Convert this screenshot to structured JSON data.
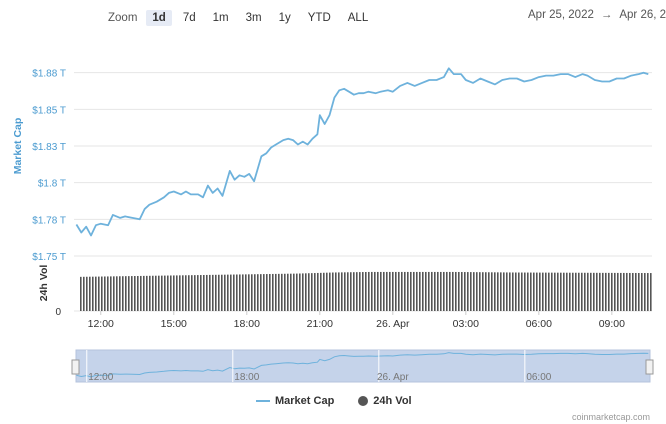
{
  "zoom": {
    "label": "Zoom",
    "buttons": [
      "1d",
      "7d",
      "1m",
      "3m",
      "1y",
      "YTD",
      "ALL"
    ],
    "active": "1d"
  },
  "range": {
    "from": "Apr 25, 2022",
    "arrow": "→",
    "to": "Apr 26, 2"
  },
  "legend": {
    "market_cap": "Market Cap",
    "volume": "24h Vol"
  },
  "credit": "coinmarketcap.com",
  "colors": {
    "line": "#6eb2dc",
    "bar": "#555555",
    "navigator_fill": "#c5d3ea",
    "grid": "#e6e6e6"
  },
  "chart_data": {
    "type": "line",
    "ylabel": "Market Cap",
    "ylabel2": "24h Vol",
    "yticks": [
      "$1.75 T",
      "$1.78 T",
      "$1.8 T",
      "$1.83 T",
      "$1.85 T",
      "$1.88 T"
    ],
    "ytick_values": [
      1.75,
      1.775,
      1.8,
      1.825,
      1.85,
      1.875
    ],
    "ylim": [
      1.75,
      1.9
    ],
    "y2ticks": [
      "0"
    ],
    "xlim": [
      10.9,
      34.65
    ],
    "xticks": [
      {
        "label": "12:00",
        "t": 12
      },
      {
        "label": "15:00",
        "t": 15
      },
      {
        "label": "18:00",
        "t": 18
      },
      {
        "label": "21:00",
        "t": 21
      },
      {
        "label": "26. Apr",
        "t": 24
      },
      {
        "label": "03:00",
        "t": 27
      },
      {
        "label": "06:00",
        "t": 30
      },
      {
        "label": "09:00",
        "t": 33
      }
    ],
    "navigator_xticks": [
      "12:00",
      "18:00",
      "26. Apr",
      "06:00"
    ],
    "series": [
      {
        "name": "Market Cap",
        "points": [
          [
            11.0,
            1.7715
          ],
          [
            11.2,
            1.766
          ],
          [
            11.4,
            1.77
          ],
          [
            11.6,
            1.764
          ],
          [
            11.8,
            1.771
          ],
          [
            12.0,
            1.772
          ],
          [
            12.3,
            1.771
          ],
          [
            12.5,
            1.778
          ],
          [
            12.8,
            1.776
          ],
          [
            13.0,
            1.777
          ],
          [
            13.3,
            1.776
          ],
          [
            13.6,
            1.775
          ],
          [
            13.8,
            1.782
          ],
          [
            14.0,
            1.785
          ],
          [
            14.3,
            1.787
          ],
          [
            14.6,
            1.79
          ],
          [
            14.8,
            1.793
          ],
          [
            15.0,
            1.794
          ],
          [
            15.3,
            1.792
          ],
          [
            15.5,
            1.794
          ],
          [
            15.7,
            1.792
          ],
          [
            16.0,
            1.792
          ],
          [
            16.2,
            1.79
          ],
          [
            16.4,
            1.798
          ],
          [
            16.6,
            1.793
          ],
          [
            16.8,
            1.796
          ],
          [
            17.0,
            1.791
          ],
          [
            17.3,
            1.808
          ],
          [
            17.5,
            1.802
          ],
          [
            17.7,
            1.805
          ],
          [
            17.9,
            1.804
          ],
          [
            18.1,
            1.806
          ],
          [
            18.3,
            1.801
          ],
          [
            18.6,
            1.818
          ],
          [
            18.8,
            1.82
          ],
          [
            19.0,
            1.824
          ],
          [
            19.2,
            1.826
          ],
          [
            19.5,
            1.829
          ],
          [
            19.7,
            1.83
          ],
          [
            19.9,
            1.829
          ],
          [
            20.1,
            1.826
          ],
          [
            20.3,
            1.828
          ],
          [
            20.5,
            1.826
          ],
          [
            20.7,
            1.83
          ],
          [
            20.9,
            1.833
          ],
          [
            21.0,
            1.846
          ],
          [
            21.2,
            1.84
          ],
          [
            21.4,
            1.846
          ],
          [
            21.6,
            1.858
          ],
          [
            21.8,
            1.863
          ],
          [
            22.0,
            1.864
          ],
          [
            22.2,
            1.862
          ],
          [
            22.4,
            1.86
          ],
          [
            22.6,
            1.861
          ],
          [
            22.8,
            1.861
          ],
          [
            23.0,
            1.862
          ],
          [
            23.3,
            1.861
          ],
          [
            23.5,
            1.862
          ],
          [
            23.8,
            1.863
          ],
          [
            24.0,
            1.862
          ],
          [
            24.3,
            1.866
          ],
          [
            24.6,
            1.868
          ],
          [
            24.9,
            1.866
          ],
          [
            25.2,
            1.868
          ],
          [
            25.5,
            1.87
          ],
          [
            25.8,
            1.87
          ],
          [
            26.1,
            1.872
          ],
          [
            26.3,
            1.878
          ],
          [
            26.5,
            1.874
          ],
          [
            26.8,
            1.874
          ],
          [
            27.0,
            1.87
          ],
          [
            27.3,
            1.868
          ],
          [
            27.6,
            1.871
          ],
          [
            27.9,
            1.869
          ],
          [
            28.2,
            1.867
          ],
          [
            28.5,
            1.87
          ],
          [
            28.8,
            1.871
          ],
          [
            29.1,
            1.871
          ],
          [
            29.4,
            1.869
          ],
          [
            29.7,
            1.87
          ],
          [
            30.0,
            1.872
          ],
          [
            30.3,
            1.873
          ],
          [
            30.6,
            1.873
          ],
          [
            30.9,
            1.874
          ],
          [
            31.2,
            1.874
          ],
          [
            31.5,
            1.872
          ],
          [
            31.8,
            1.874
          ],
          [
            32.0,
            1.873
          ],
          [
            32.3,
            1.87
          ],
          [
            32.6,
            1.869
          ],
          [
            32.9,
            1.869
          ],
          [
            33.2,
            1.871
          ],
          [
            33.5,
            1.871
          ],
          [
            33.8,
            1.873
          ],
          [
            34.1,
            1.874
          ],
          [
            34.3,
            1.875
          ],
          [
            34.5,
            1.874
          ]
        ]
      },
      {
        "name": "24h Vol",
        "type": "bar",
        "note_bar_relative": "bar heights relative to axis maximum",
        "bar_levels": [
          [
            11.0,
            0.62
          ],
          [
            14.0,
            0.64
          ],
          [
            17.0,
            0.66
          ],
          [
            20.0,
            0.68
          ],
          [
            21.5,
            0.7
          ],
          [
            23.0,
            0.71
          ],
          [
            26.5,
            0.71
          ],
          [
            29.0,
            0.7
          ],
          [
            34.6,
            0.69
          ]
        ]
      }
    ],
    "grid": true,
    "legend_position": "bottom-center"
  }
}
